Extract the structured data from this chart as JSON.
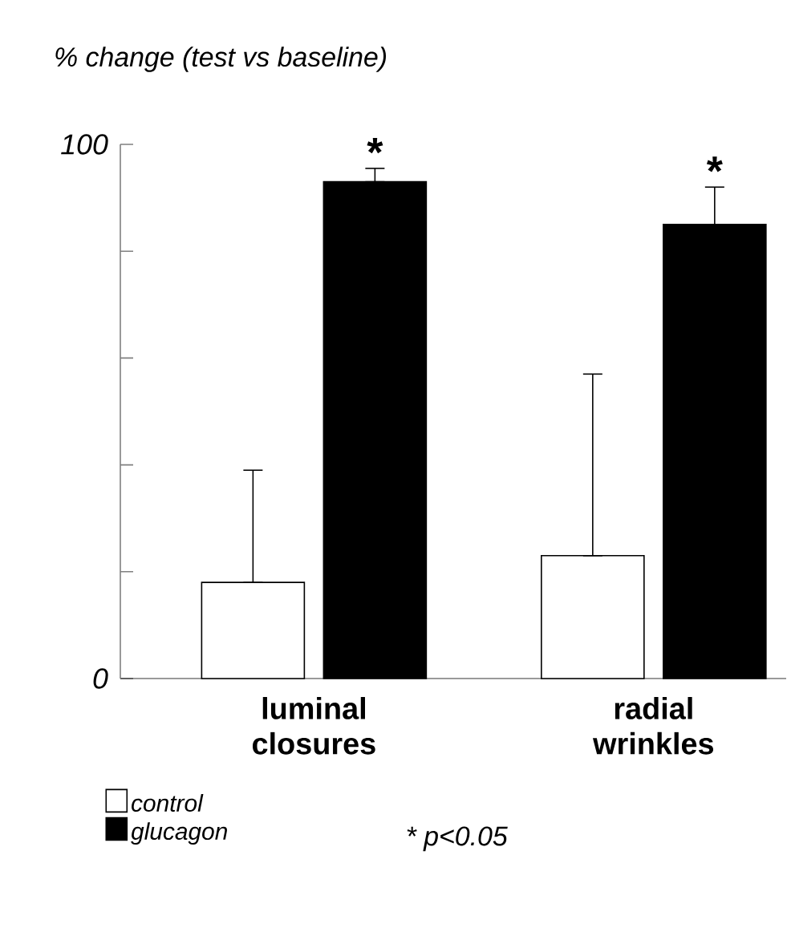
{
  "chart_data": {
    "type": "bar",
    "ylabel": "% change (test vs baseline)",
    "categories": [
      "luminal closures",
      "radial wrinkles"
    ],
    "series": [
      {
        "name": "control",
        "color": "#ffffff",
        "values": [
          18,
          23
        ],
        "errors": [
          [
            18,
            39
          ],
          [
            23,
            57
          ]
        ]
      },
      {
        "name": "glucagon",
        "color": "#000000",
        "values": [
          93,
          85
        ],
        "errors": [
          [
            93,
            95.5
          ],
          [
            85,
            92
          ]
        ]
      }
    ],
    "ylim": [
      0,
      100
    ],
    "yticks": [
      0,
      {
        "value": 20,
        "label": null
      },
      {
        "value": 40,
        "label": null
      },
      {
        "value": 60,
        "label": null
      },
      {
        "value": 80,
        "label": null
      },
      100
    ],
    "annotations": [
      "*",
      "*",
      "* p<0.05"
    ],
    "legend": "bottom left",
    "grid": false
  }
}
